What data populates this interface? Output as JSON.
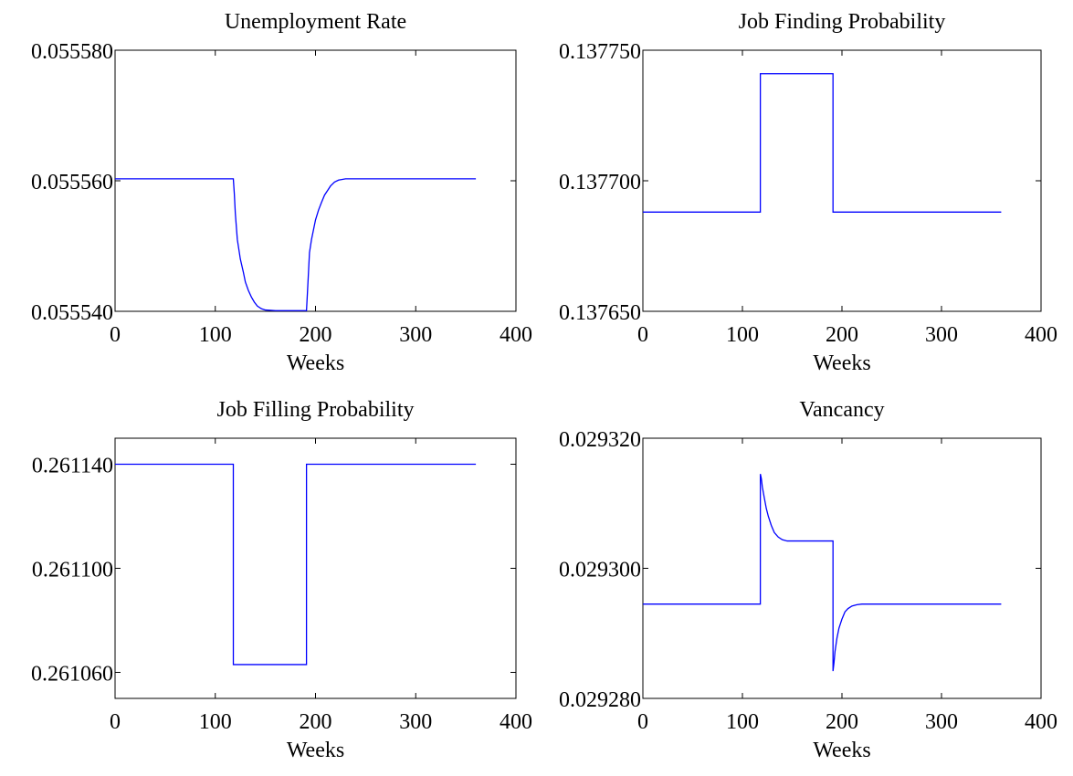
{
  "colors": {
    "line": "#0000ff",
    "axes": "#000000",
    "background": "#ffffff"
  },
  "chart_data": [
    {
      "type": "line",
      "title": "Unemployment Rate",
      "xlabel": "Weeks",
      "ylabel": "",
      "xlim": [
        0,
        400
      ],
      "ylim": [
        0.05554,
        0.05558
      ],
      "xticks": [
        0,
        100,
        200,
        300,
        400
      ],
      "xtick_labels": [
        "0",
        "100",
        "200",
        "300",
        "400"
      ],
      "yticks": [
        0.05554,
        0.05556,
        0.05558
      ],
      "ytick_labels": [
        "0.055540",
        "0.055560",
        "0.055580"
      ],
      "grid": false,
      "series": [
        {
          "x": [
            0,
            118,
            119,
            120,
            122,
            125,
            128,
            130,
            133,
            136,
            139,
            142,
            146,
            150,
            160,
            170,
            180,
            191,
            192,
            193,
            194,
            196,
            198,
            200,
            203,
            206,
            209,
            212,
            215,
            219,
            223,
            230,
            260,
            300,
            360
          ],
          "y": [
            0.0555603,
            0.0555603,
            0.055558,
            0.055555,
            0.055551,
            0.055548,
            0.055546,
            0.0555445,
            0.0555432,
            0.0555422,
            0.0555414,
            0.0555408,
            0.0555404,
            0.0555402,
            0.0555401,
            0.0555401,
            0.0555401,
            0.0555401,
            0.055543,
            0.055546,
            0.055549,
            0.055551,
            0.0555525,
            0.055554,
            0.0555555,
            0.0555567,
            0.0555578,
            0.0555585,
            0.0555592,
            0.0555598,
            0.0555601,
            0.0555603,
            0.0555603,
            0.0555603,
            0.0555603
          ]
        }
      ]
    },
    {
      "type": "line",
      "title": "Job Finding Probability",
      "xlabel": "Weeks",
      "ylabel": "",
      "xlim": [
        0,
        400
      ],
      "ylim": [
        0.13765,
        0.13775
      ],
      "xticks": [
        0,
        100,
        200,
        300,
        400
      ],
      "xtick_labels": [
        "0",
        "100",
        "200",
        "300",
        "400"
      ],
      "yticks": [
        0.13765,
        0.1377,
        0.13775
      ],
      "ytick_labels": [
        "0.137650",
        "0.137700",
        "0.137750"
      ],
      "grid": false,
      "series": [
        {
          "x": [
            0,
            118,
            118.01,
            191,
            191.01,
            360
          ],
          "y": [
            0.137688,
            0.137688,
            0.137741,
            0.137741,
            0.137688,
            0.137688
          ]
        }
      ]
    },
    {
      "type": "line",
      "title": "Job Filling Probability",
      "xlabel": "Weeks",
      "ylabel": "",
      "xlim": [
        0,
        400
      ],
      "ylim": [
        0.26105,
        0.26115
      ],
      "xticks": [
        0,
        100,
        200,
        300,
        400
      ],
      "xtick_labels": [
        "0",
        "100",
        "200",
        "300",
        "400"
      ],
      "yticks": [
        0.26106,
        0.2611,
        0.26114
      ],
      "ytick_labels": [
        "0.261060",
        "0.261100",
        "0.261140"
      ],
      "grid": false,
      "series": [
        {
          "x": [
            0,
            118,
            118.01,
            191,
            191.01,
            360
          ],
          "y": [
            0.26114,
            0.26114,
            0.261063,
            0.261063,
            0.26114,
            0.26114
          ]
        }
      ]
    },
    {
      "type": "line",
      "title": "Vancancy",
      "xlabel": "Weeks",
      "ylabel": "",
      "xlim": [
        0,
        400
      ],
      "ylim": [
        0.02928,
        0.02932
      ],
      "xticks": [
        0,
        100,
        200,
        300,
        400
      ],
      "xtick_labels": [
        "0",
        "100",
        "200",
        "300",
        "400"
      ],
      "yticks": [
        0.02928,
        0.0293,
        0.02932
      ],
      "ytick_labels": [
        "0.029280",
        "0.029300",
        "0.029320"
      ],
      "grid": false,
      "series": [
        {
          "x": [
            0,
            118,
            118.01,
            119,
            120,
            122,
            124,
            126,
            129,
            132,
            136,
            140,
            145,
            160,
            191,
            191.01,
            192,
            193,
            195,
            197,
            200,
            203,
            206,
            210,
            215,
            220,
            250,
            300,
            360
          ],
          "y": [
            0.0292945,
            0.0292945,
            0.0293145,
            0.0293138,
            0.0293125,
            0.0293108,
            0.0293092,
            0.029308,
            0.0293066,
            0.0293055,
            0.0293048,
            0.0293044,
            0.0293042,
            0.0293042,
            0.0293042,
            0.0292842,
            0.0292855,
            0.0292872,
            0.0292893,
            0.0292908,
            0.0292922,
            0.0292933,
            0.0292938,
            0.0292942,
            0.0292944,
            0.0292945,
            0.0292945,
            0.0292945,
            0.0292945
          ]
        }
      ]
    }
  ]
}
